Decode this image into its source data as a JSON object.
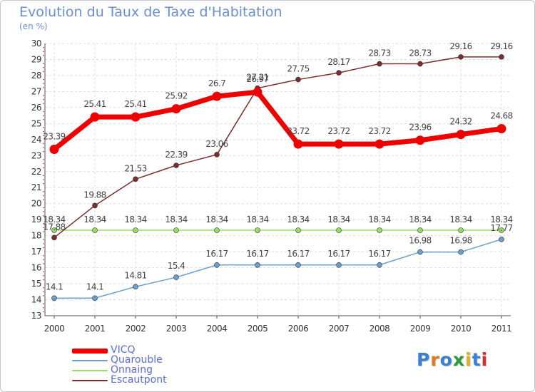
{
  "header": {
    "title": "Evolution du Taux de Taxe d'Habitation",
    "subtitle": "(en %)"
  },
  "logo": {
    "text": "Proxiti",
    "colors": [
      "#3a7fd0",
      "#e07a20",
      "#3a7fd0",
      "#2a9a3a",
      "#e0b020",
      "#3a7fd0",
      "#d03030"
    ]
  },
  "chart_data": {
    "type": "line",
    "title": "Evolution du Taux de Taxe d'Habitation",
    "ylabel": "(en %)",
    "x": [
      "2000",
      "2001",
      "2002",
      "2003",
      "2004",
      "2005",
      "2006",
      "2007",
      "2008",
      "2009",
      "2010",
      "2011"
    ],
    "ylim": [
      13,
      30
    ],
    "yticks": [
      "13",
      "14",
      "15",
      "16",
      "17",
      "18",
      "19",
      "20",
      "21",
      "22",
      "23",
      "24",
      "25",
      "26",
      "27",
      "28",
      "29",
      "30"
    ],
    "grid": true,
    "legend_position": "bottom-left",
    "series": [
      {
        "name": "VICQ",
        "color": "#ee0000",
        "values": [
          23.39,
          25.41,
          25.41,
          25.92,
          26.7,
          26.97,
          23.72,
          23.72,
          23.72,
          23.96,
          24.32,
          24.68
        ],
        "labels": [
          "23.39",
          "25.41",
          "25.41",
          "25.92",
          "26.7",
          "26.97",
          "23.72",
          "23.72",
          "23.72",
          "23.96",
          "24.32",
          "24.68"
        ]
      },
      {
        "name": "Quarouble",
        "color": "#6a9fcf",
        "values": [
          14.1,
          14.1,
          14.81,
          15.4,
          16.17,
          16.17,
          16.17,
          16.17,
          16.17,
          16.98,
          16.98,
          17.77
        ],
        "labels": [
          "14.1",
          "14.1",
          "14.81",
          "15.4",
          "16.17",
          "16.17",
          "16.17",
          "16.17",
          "16.17",
          "16.98",
          "16.98",
          "17.77"
        ]
      },
      {
        "name": "Onnaing",
        "color": "#99dd66",
        "values": [
          18.34,
          18.34,
          18.34,
          18.34,
          18.34,
          18.34,
          18.34,
          18.34,
          18.34,
          18.34,
          18.34,
          18.34
        ],
        "labels": [
          "18.34",
          "18.34",
          "18.34",
          "18.34",
          "18.34",
          "18.34",
          "18.34",
          "18.34",
          "18.34",
          "18.34",
          "18.34",
          "18.34"
        ]
      },
      {
        "name": "Escautpont",
        "color": "#7a2e2e",
        "values": [
          17.88,
          19.88,
          21.53,
          22.39,
          23.06,
          27.21,
          27.75,
          28.17,
          28.73,
          28.73,
          29.16,
          29.16
        ],
        "labels": [
          "17.88",
          "19.88",
          "21.53",
          "22.39",
          "23.06",
          "27.21",
          "27.75",
          "28.17",
          "28.73",
          "28.73",
          "29.16",
          "29.16"
        ]
      }
    ]
  }
}
